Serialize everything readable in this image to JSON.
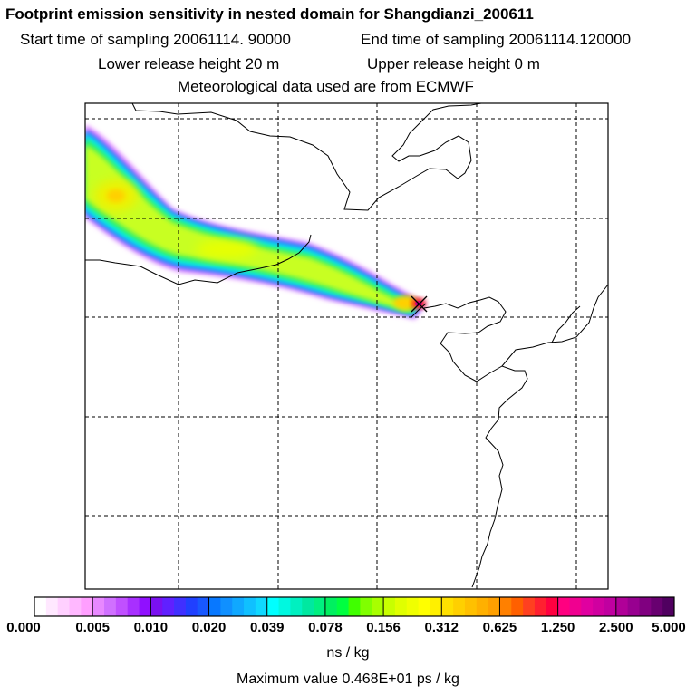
{
  "header": {
    "title": "Footprint emission sensitivity in nested domain for Shangdianzi_200611",
    "start_label": "Start time of sampling 20061114. 90000",
    "end_label": "End time of sampling 20061114.120000",
    "lower_label": "Lower release height   20 m",
    "upper_label": "Upper release height    0 m",
    "met_label": "Meteorological data used are from ECMWF"
  },
  "map": {
    "plume_center_color": "#ff0000",
    "coast_color": "#000000",
    "grid_color": "#000000"
  },
  "colorbar": {
    "tick_labels": [
      "0.000",
      "0.005",
      "0.010",
      "0.020",
      "0.039",
      "0.078",
      "0.156",
      "0.312",
      "0.625",
      "1.250",
      "2.500",
      "5.000"
    ],
    "colors": [
      [
        "#ffffff",
        "#ffe8ff",
        "#ffd0ff",
        "#ffb8ff",
        "#ff9fff"
      ],
      [
        "#e888ff",
        "#d070ff",
        "#c050ff",
        "#a830ff",
        "#9010ff"
      ],
      [
        "#7a10f0",
        "#6020ff",
        "#4030ff",
        "#2040ff",
        "#1858ff"
      ],
      [
        "#0878ff",
        "#1090ff",
        "#10a8ff",
        "#10c0ff",
        "#10d8ff"
      ],
      [
        "#00ffff",
        "#00f8e0",
        "#00f0c0",
        "#00e8a0",
        "#00f080"
      ],
      [
        "#00f060",
        "#00ff40",
        "#40ff00",
        "#80ff00",
        "#a8ff00"
      ],
      [
        "#c8ff00",
        "#e0ff00",
        "#f0ff00",
        "#ffff00",
        "#fff000"
      ],
      [
        "#ffe000",
        "#ffd000",
        "#ffc000",
        "#ffb000",
        "#ffa000"
      ],
      [
        "#ff8000",
        "#ff6000",
        "#ff4020",
        "#ff2030",
        "#ff0040"
      ],
      [
        "#ff0080",
        "#f00090",
        "#e000a0",
        "#d000a0",
        "#c000a0"
      ],
      [
        "#b00098",
        "#980090",
        "#800080",
        "#680070",
        "#500060"
      ]
    ],
    "unit": "ns / kg"
  },
  "footer": {
    "max_value": "Maximum value  0.468E+01 ps / kg"
  }
}
